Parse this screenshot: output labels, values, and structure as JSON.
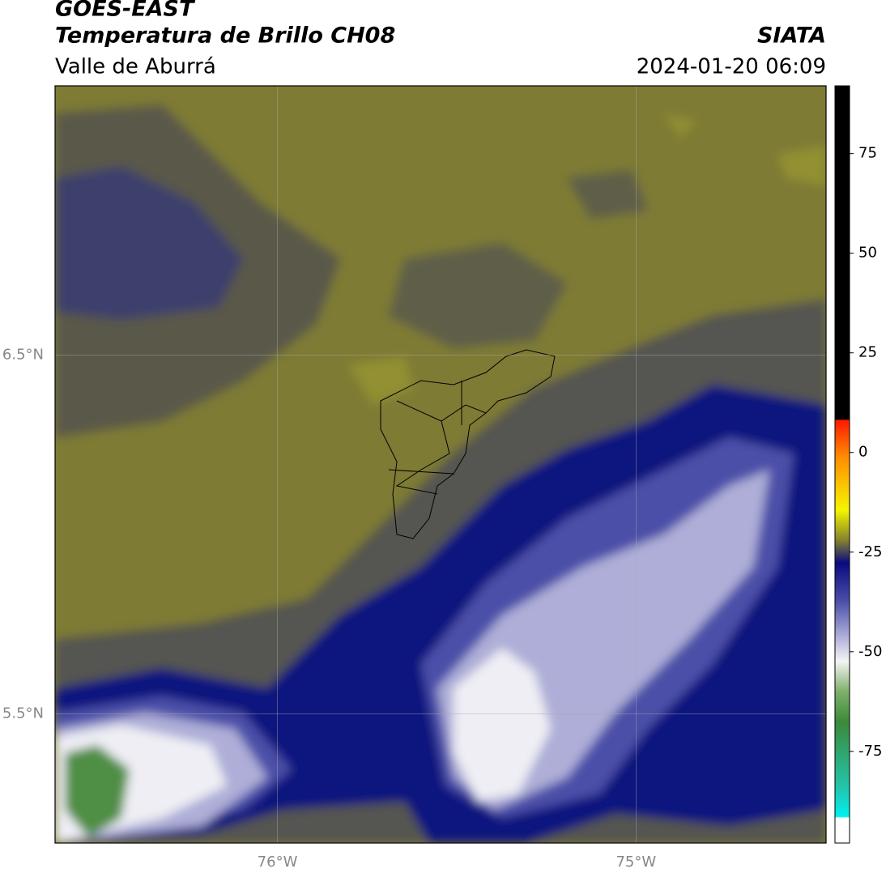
{
  "header": {
    "title": "GOES-EAST",
    "subtitle": "Temperatura de Brillo CH08",
    "region": "Valle de Aburrá",
    "source": "SIATA",
    "datetime": "2024-01-20 06:09"
  },
  "map": {
    "xlim": [
      -76.62,
      -74.47
    ],
    "ylim": [
      5.14,
      7.25
    ],
    "xticks": [
      {
        "value": -76,
        "label": "76°W"
      },
      {
        "value": -75,
        "label": "75°W"
      }
    ],
    "yticks": [
      {
        "value": 5.5,
        "label": "5.5°N"
      },
      {
        "value": 6.5,
        "label": "6.5°N"
      }
    ],
    "grid": true
  },
  "colorbar": {
    "lim": [
      -98,
      92
    ],
    "ticks": [
      -75,
      -50,
      -25,
      0,
      25,
      50,
      75
    ]
  }
}
